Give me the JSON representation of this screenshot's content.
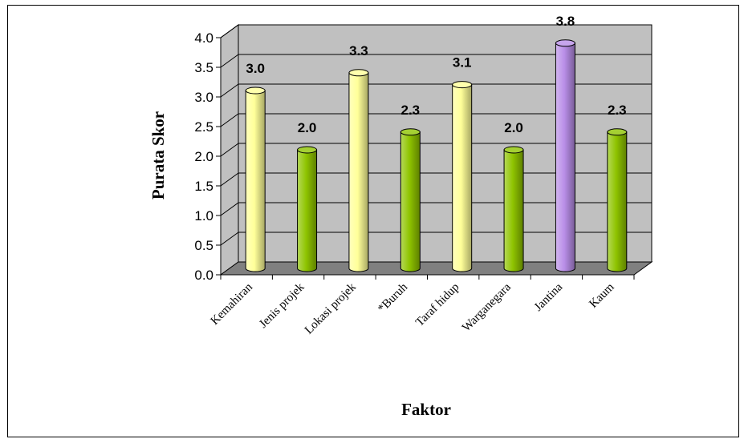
{
  "chart_data": {
    "type": "bar",
    "title": "",
    "xlabel": "Faktor",
    "ylabel": "Purata Skor",
    "ylim": [
      0,
      4.0
    ],
    "yticks": [
      "0.0",
      "0.5",
      "1.0",
      "1.5",
      "2.0",
      "2.5",
      "3.0",
      "3.5",
      "4.0"
    ],
    "grid": true,
    "categories": [
      "Kemahiran",
      "Jenis projek",
      "Lokasi projek",
      "*Buruh",
      "Taraf hidup",
      "Warganegara",
      "Jantina",
      "Kaum"
    ],
    "values": [
      3.0,
      2.0,
      3.3,
      2.3,
      3.1,
      2.0,
      3.8,
      2.3
    ],
    "value_labels": [
      "3.0",
      "2.0",
      "3.3",
      "2.3",
      "3.1",
      "2.0",
      "3.8",
      "2.3"
    ],
    "bar_colors": [
      "#ffff99",
      "#8fc400",
      "#ffff99",
      "#8fc400",
      "#ffff99",
      "#8fc400",
      "#b98ee8",
      "#8fc400"
    ],
    "wall_color": "#c0c0c0",
    "floor_color": "#808080"
  }
}
